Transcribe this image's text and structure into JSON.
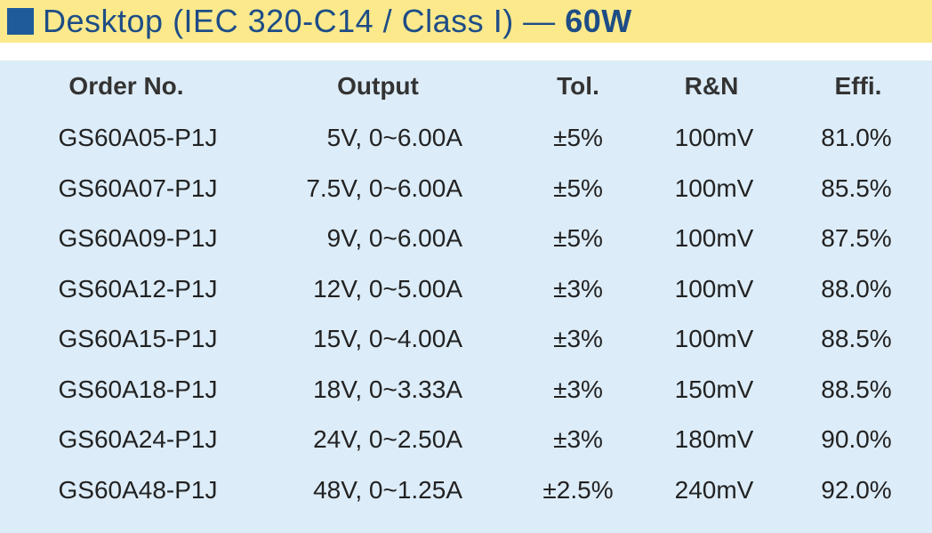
{
  "title": {
    "text": "Desktop (IEC 320-C14 / Class I) —",
    "bold": "60W"
  },
  "table": {
    "header": [
      "Order No.",
      "Output",
      "Tol.",
      "R&N",
      "Effi."
    ],
    "rows": [
      [
        "GS60A05-P1J",
        "5V, 0~6.00A",
        "±5%",
        "100mV",
        "81.0%"
      ],
      [
        "GS60A07-P1J",
        "7.5V, 0~6.00A",
        "±5%",
        "100mV",
        "85.5%"
      ],
      [
        "GS60A09-P1J",
        "9V, 0~6.00A",
        "±5%",
        "100mV",
        "87.5%"
      ],
      [
        "GS60A12-P1J",
        "12V, 0~5.00A",
        "±3%",
        "100mV",
        "88.0%"
      ],
      [
        "GS60A15-P1J",
        "15V, 0~4.00A",
        "±3%",
        "100mV",
        "88.5%"
      ],
      [
        "GS60A18-P1J",
        "18V, 0~3.33A",
        "±3%",
        "150mV",
        "88.5%"
      ],
      [
        "GS60A24-P1J",
        "24V, 0~2.50A",
        "±3%",
        "180mV",
        "90.0%"
      ],
      [
        "GS60A48-P1J",
        "48V, 0~1.25A",
        "±2.5%",
        "240mV",
        "92.0%"
      ]
    ]
  }
}
